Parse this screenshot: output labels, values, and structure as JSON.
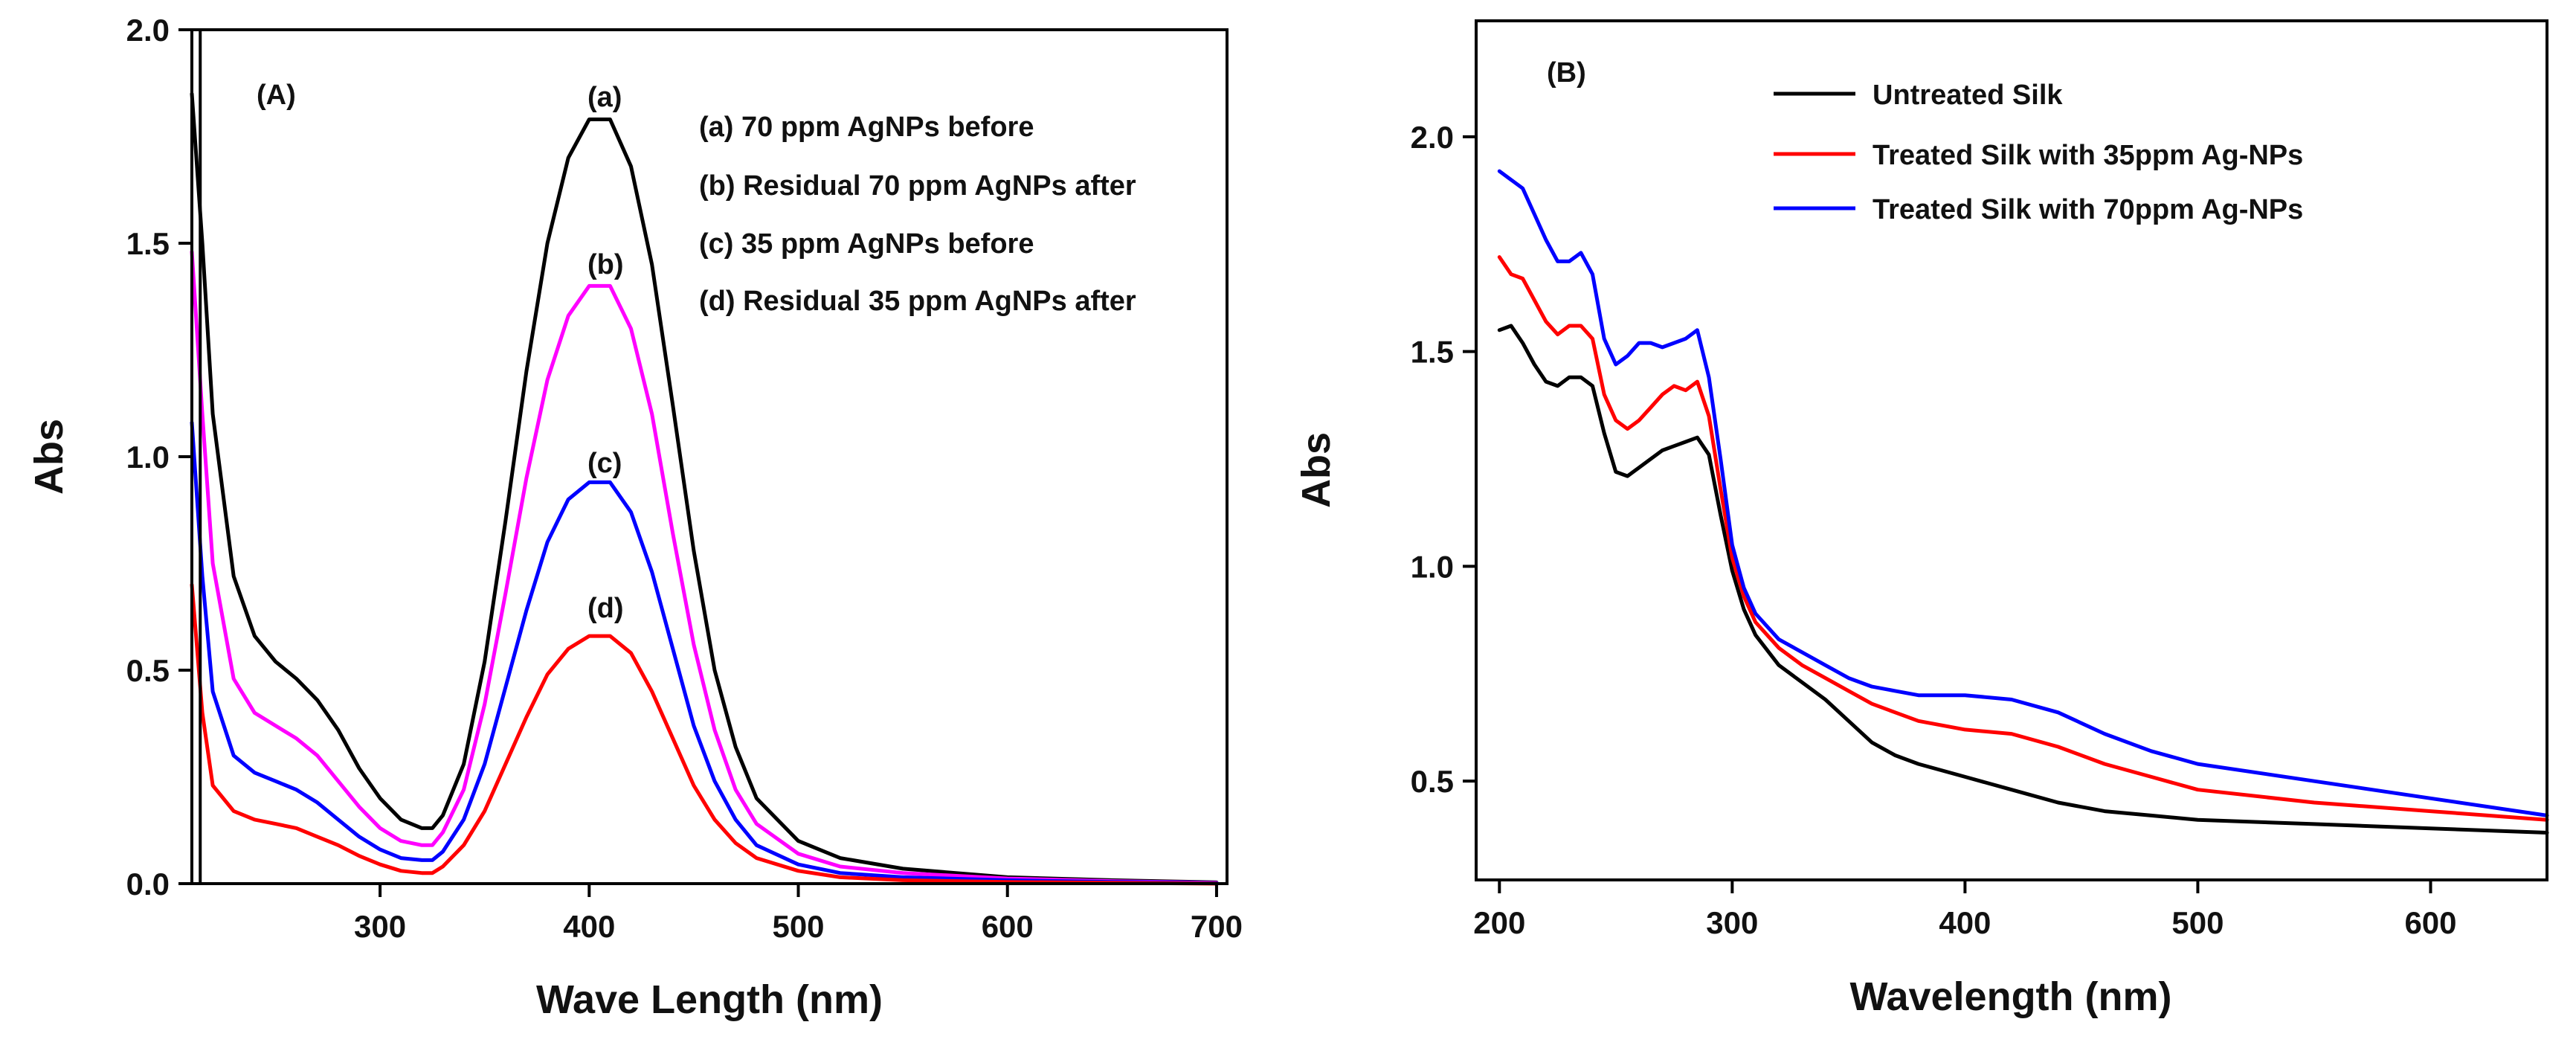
{
  "chart_data": [
    {
      "id": "A",
      "type": "line",
      "panel_label": "(A)",
      "xlabel": "Wave Length (nm)",
      "ylabel": "Abs",
      "xlim": [
        210,
        705
      ],
      "ylim": [
        0,
        2.0
      ],
      "xticks": [
        300,
        400,
        500,
        600,
        700
      ],
      "yticks": [
        0.0,
        0.5,
        1.0,
        1.5,
        2.0
      ],
      "ytick_labels": [
        "0.0",
        "0.5",
        "1.0",
        "1.5",
        "2.0"
      ],
      "legend": [
        "(a) 70 ppm AgNPs before",
        "(b)  Residual 70 ppm AgNPs after",
        "(c) 35 ppm AgNPs before",
        "(d) Residual 35 ppm AgNPs after"
      ],
      "legend_position": "top-right",
      "series": [
        {
          "name": "(a) 70 ppm AgNPs before",
          "color": "#000000",
          "curve_label": "(a)",
          "x": [
            210,
            215,
            220,
            230,
            240,
            250,
            260,
            270,
            280,
            290,
            300,
            310,
            320,
            325,
            330,
            340,
            350,
            360,
            370,
            380,
            390,
            400,
            410,
            420,
            430,
            440,
            450,
            460,
            470,
            480,
            500,
            520,
            550,
            600,
            650,
            700
          ],
          "y": [
            1.85,
            1.5,
            1.1,
            0.72,
            0.58,
            0.52,
            0.48,
            0.43,
            0.36,
            0.27,
            0.2,
            0.15,
            0.13,
            0.13,
            0.16,
            0.28,
            0.52,
            0.85,
            1.2,
            1.5,
            1.7,
            1.79,
            1.79,
            1.68,
            1.45,
            1.12,
            0.78,
            0.5,
            0.32,
            0.2,
            0.1,
            0.06,
            0.035,
            0.015,
            0.008,
            0.003
          ]
        },
        {
          "name": "(b)  Residual 70 ppm AgNPs after",
          "color": "#ff00ff",
          "curve_label": "(b)",
          "x": [
            210,
            215,
            220,
            230,
            240,
            250,
            260,
            270,
            280,
            290,
            300,
            310,
            320,
            325,
            330,
            340,
            350,
            360,
            370,
            380,
            390,
            400,
            410,
            420,
            430,
            440,
            450,
            460,
            470,
            480,
            500,
            520,
            550,
            600,
            650,
            700
          ],
          "y": [
            1.48,
            1.1,
            0.75,
            0.48,
            0.4,
            0.37,
            0.34,
            0.3,
            0.24,
            0.18,
            0.13,
            0.1,
            0.09,
            0.09,
            0.12,
            0.22,
            0.42,
            0.68,
            0.95,
            1.18,
            1.33,
            1.4,
            1.4,
            1.3,
            1.1,
            0.82,
            0.56,
            0.36,
            0.22,
            0.14,
            0.07,
            0.04,
            0.025,
            0.012,
            0.006,
            0.002
          ]
        },
        {
          "name": "(c) 35 ppm AgNPs before",
          "color": "#0000ff",
          "curve_label": "(c)",
          "x": [
            210,
            215,
            220,
            230,
            240,
            250,
            260,
            270,
            280,
            290,
            300,
            310,
            320,
            325,
            330,
            340,
            350,
            360,
            370,
            380,
            390,
            400,
            410,
            420,
            430,
            440,
            450,
            460,
            470,
            480,
            500,
            520,
            550,
            600,
            650,
            700
          ],
          "y": [
            1.08,
            0.72,
            0.45,
            0.3,
            0.26,
            0.24,
            0.22,
            0.19,
            0.15,
            0.11,
            0.08,
            0.06,
            0.055,
            0.055,
            0.075,
            0.15,
            0.28,
            0.46,
            0.64,
            0.8,
            0.9,
            0.94,
            0.94,
            0.87,
            0.73,
            0.55,
            0.37,
            0.24,
            0.15,
            0.09,
            0.045,
            0.025,
            0.015,
            0.008,
            0.004,
            0.001
          ]
        },
        {
          "name": "(d) Residual 35 ppm AgNPs after",
          "color": "#ff0000",
          "curve_label": "(d)",
          "x": [
            210,
            215,
            220,
            230,
            240,
            250,
            260,
            270,
            280,
            290,
            300,
            310,
            320,
            325,
            330,
            340,
            350,
            360,
            370,
            380,
            390,
            400,
            410,
            420,
            430,
            440,
            450,
            460,
            470,
            480,
            500,
            520,
            550,
            600,
            650,
            700
          ],
          "y": [
            0.7,
            0.4,
            0.23,
            0.17,
            0.15,
            0.14,
            0.13,
            0.11,
            0.09,
            0.065,
            0.045,
            0.03,
            0.025,
            0.025,
            0.04,
            0.09,
            0.17,
            0.28,
            0.39,
            0.49,
            0.55,
            0.58,
            0.58,
            0.54,
            0.45,
            0.34,
            0.23,
            0.15,
            0.095,
            0.06,
            0.03,
            0.015,
            0.008,
            0.004,
            0.002,
            0.0
          ]
        }
      ]
    },
    {
      "id": "B",
      "type": "line",
      "panel_label": "(B)",
      "xlabel": "Wavelength (nm)",
      "ylabel": "Abs",
      "xlim": [
        190,
        650
      ],
      "ylim": [
        0.27,
        2.27
      ],
      "xticks": [
        200,
        300,
        400,
        500,
        600
      ],
      "yticks": [
        0.5,
        1.0,
        1.5,
        2.0
      ],
      "ytick_labels": [
        "0.5",
        "1.0",
        "1.5",
        "2.0"
      ],
      "legend": [
        "Untreated Silk",
        "Treated Silk with 35ppm Ag-NPs",
        "Treated Silk with 70ppm Ag-NPs"
      ],
      "legend_position": "top-right",
      "series": [
        {
          "name": "Untreated Silk",
          "color": "#000000",
          "x": [
            200,
            205,
            210,
            215,
            220,
            225,
            230,
            235,
            240,
            245,
            250,
            255,
            260,
            265,
            270,
            275,
            280,
            285,
            290,
            295,
            300,
            305,
            310,
            320,
            330,
            340,
            350,
            360,
            370,
            380,
            400,
            420,
            440,
            460,
            480,
            500,
            550,
            600,
            650
          ],
          "y": [
            1.55,
            1.56,
            1.52,
            1.47,
            1.43,
            1.42,
            1.44,
            1.44,
            1.42,
            1.31,
            1.22,
            1.21,
            1.23,
            1.25,
            1.27,
            1.28,
            1.29,
            1.3,
            1.26,
            1.12,
            0.99,
            0.9,
            0.84,
            0.77,
            0.73,
            0.69,
            0.64,
            0.59,
            0.56,
            0.54,
            0.51,
            0.48,
            0.45,
            0.43,
            0.42,
            0.41,
            0.4,
            0.39,
            0.38
          ]
        },
        {
          "name": "Treated Silk with 35ppm Ag-NPs",
          "color": "#ff0000",
          "x": [
            200,
            205,
            210,
            215,
            220,
            225,
            230,
            235,
            240,
            245,
            250,
            255,
            260,
            265,
            270,
            275,
            280,
            285,
            290,
            295,
            300,
            305,
            310,
            320,
            330,
            340,
            350,
            360,
            370,
            380,
            400,
            420,
            440,
            460,
            480,
            500,
            550,
            600,
            650
          ],
          "y": [
            1.72,
            1.68,
            1.67,
            1.62,
            1.57,
            1.54,
            1.56,
            1.56,
            1.53,
            1.4,
            1.34,
            1.32,
            1.34,
            1.37,
            1.4,
            1.42,
            1.41,
            1.43,
            1.35,
            1.18,
            1.02,
            0.93,
            0.87,
            0.81,
            0.77,
            0.74,
            0.71,
            0.68,
            0.66,
            0.64,
            0.62,
            0.61,
            0.58,
            0.54,
            0.51,
            0.48,
            0.45,
            0.43,
            0.41
          ]
        },
        {
          "name": "Treated Silk with 70ppm Ag-NPs",
          "color": "#0000ff",
          "x": [
            200,
            205,
            210,
            215,
            220,
            225,
            230,
            235,
            240,
            245,
            250,
            255,
            260,
            265,
            270,
            275,
            280,
            285,
            290,
            295,
            300,
            305,
            310,
            320,
            330,
            340,
            350,
            360,
            370,
            380,
            400,
            420,
            440,
            460,
            480,
            500,
            550,
            600,
            650
          ],
          "y": [
            1.92,
            1.9,
            1.88,
            1.82,
            1.76,
            1.71,
            1.71,
            1.73,
            1.68,
            1.53,
            1.47,
            1.49,
            1.52,
            1.52,
            1.51,
            1.52,
            1.53,
            1.55,
            1.44,
            1.25,
            1.05,
            0.95,
            0.89,
            0.83,
            0.8,
            0.77,
            0.74,
            0.72,
            0.71,
            0.7,
            0.7,
            0.69,
            0.66,
            0.61,
            0.57,
            0.54,
            0.5,
            0.46,
            0.42
          ]
        }
      ]
    }
  ]
}
